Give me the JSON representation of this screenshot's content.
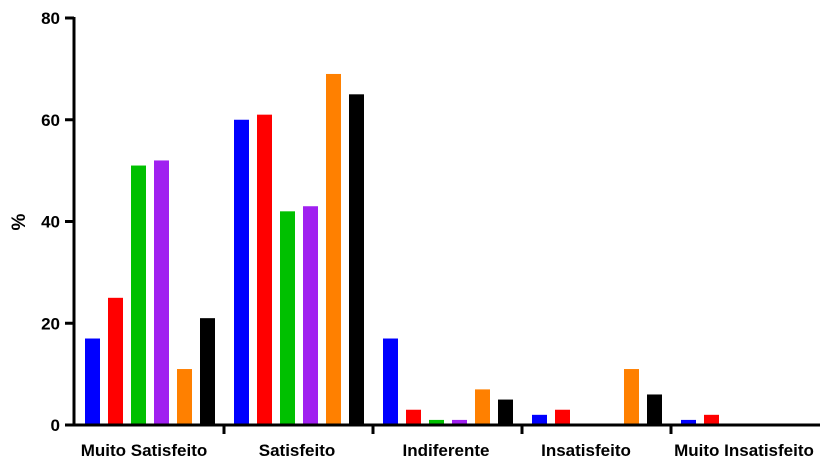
{
  "chart_data": {
    "type": "bar",
    "title": "",
    "xlabel": "",
    "ylabel": "%",
    "ylim": [
      0,
      80
    ],
    "yticks": [
      0,
      20,
      40,
      60,
      80
    ],
    "grid": false,
    "legend": "none",
    "categories": [
      "Muito Satisfeito",
      "Satisfeito",
      "Indiferente",
      "Insatisfeito",
      "Muito Insatisfeito"
    ],
    "series": [
      {
        "color": "#0000ff",
        "values": [
          17,
          60,
          17,
          2,
          1
        ]
      },
      {
        "color": "#ff0000",
        "values": [
          25,
          61,
          3,
          3,
          2
        ]
      },
      {
        "color": "#00c000",
        "values": [
          51,
          42,
          1,
          0,
          0
        ]
      },
      {
        "color": "#a020f0",
        "values": [
          52,
          43,
          1,
          0,
          0
        ]
      },
      {
        "color": "#ff8000",
        "values": [
          11,
          69,
          7,
          11,
          0
        ]
      },
      {
        "color": "#000000",
        "values": [
          21,
          65,
          5,
          6,
          0
        ]
      }
    ]
  }
}
